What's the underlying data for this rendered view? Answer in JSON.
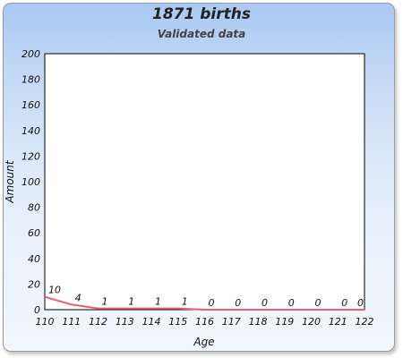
{
  "chart_data": {
    "type": "line",
    "title": "1871 births",
    "subtitle": "Validated data",
    "xlabel": "Age",
    "ylabel": "Amount",
    "x": [
      110,
      111,
      112,
      113,
      114,
      115,
      116,
      117,
      118,
      119,
      120,
      121,
      122
    ],
    "series": [
      {
        "values": [
          10,
          4,
          1,
          1,
          1,
          1,
          0,
          0,
          0,
          0,
          0,
          0,
          0
        ],
        "color": "#e8606a"
      }
    ],
    "ylim": [
      0,
      200
    ],
    "yticks": [
      0,
      20,
      40,
      60,
      80,
      100,
      120,
      140,
      160,
      180,
      200
    ],
    "grid": false,
    "legend": "none",
    "plot_background": "#ffffff"
  }
}
